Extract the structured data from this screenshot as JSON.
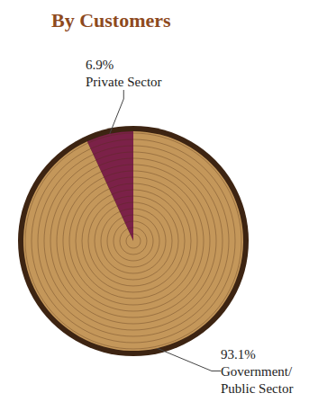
{
  "chart_data": {
    "type": "pie",
    "title": "By Customers",
    "categories": [
      "Private Sector",
      "Government/Public Sector"
    ],
    "values": [
      6.9,
      93.1
    ],
    "value_labels": [
      "6.9%",
      "93.1%"
    ],
    "colors": [
      "#7b2148",
      "#c4975a"
    ],
    "data_labels": true
  }
}
